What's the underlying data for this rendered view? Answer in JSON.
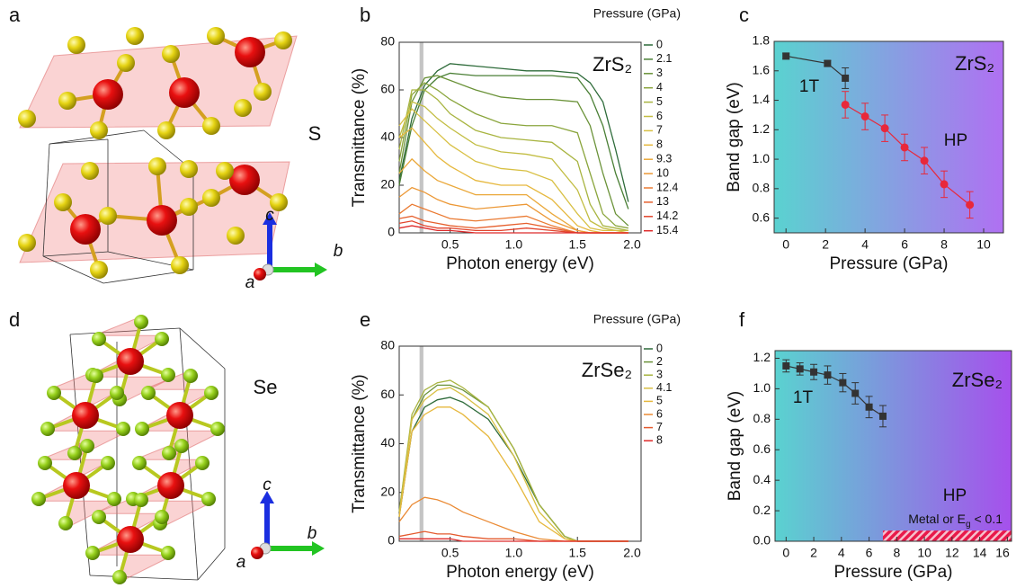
{
  "chart_data": [
    {
      "type": "line",
      "panel": "b",
      "title": "ZrS₂",
      "legend_title": "Pressure (GPa)",
      "xlabel": "Photon energy (eV)",
      "ylabel": "Transmittance (%)",
      "xlim": [
        0.1,
        2.0
      ],
      "ylim": [
        0,
        80
      ],
      "xticks": [
        0.5,
        {
          "value": 1,
          "label": "1.0"
        },
        1.5,
        {
          "value": 2,
          "label": "2.0"
        }
      ],
      "yticks": [
        0,
        20,
        40,
        60,
        80
      ],
      "highlight_xrange": [
        0.26,
        0.29
      ],
      "highlight_color": "#c4c4c4",
      "x": [
        0.1,
        0.2,
        0.3,
        0.4,
        0.5,
        0.7,
        0.9,
        1.1,
        1.3,
        1.5,
        1.6,
        1.7,
        1.8,
        1.9
      ],
      "series": [
        {
          "name": "0",
          "color": "#2e6b3a",
          "values": [
            22,
            48,
            62,
            68,
            71,
            70,
            69,
            68,
            68,
            67,
            63,
            55,
            35,
            13
          ]
        },
        {
          "name": "2.1",
          "color": "#4a7f35",
          "values": [
            20,
            45,
            60,
            65,
            67,
            66,
            66,
            66,
            66,
            65,
            58,
            45,
            25,
            10
          ]
        },
        {
          "name": "3",
          "color": "#6a9238",
          "values": [
            25,
            55,
            65,
            66,
            64,
            60,
            57,
            56,
            56,
            55,
            45,
            25,
            8,
            3
          ]
        },
        {
          "name": "4",
          "color": "#8aa53c",
          "values": [
            30,
            58,
            63,
            60,
            56,
            50,
            46,
            45,
            45,
            42,
            25,
            8,
            3,
            2
          ]
        },
        {
          "name": "5",
          "color": "#a8b440",
          "values": [
            35,
            60,
            60,
            56,
            50,
            43,
            40,
            39,
            38,
            30,
            12,
            3,
            2,
            1
          ]
        },
        {
          "name": "6",
          "color": "#c2bd42",
          "values": [
            40,
            55,
            53,
            48,
            44,
            37,
            34,
            33,
            31,
            18,
            5,
            2,
            1,
            1
          ]
        },
        {
          "name": "7",
          "color": "#d8c044",
          "values": [
            45,
            52,
            47,
            42,
            37,
            30,
            27,
            26,
            22,
            8,
            2,
            1,
            1,
            0
          ]
        },
        {
          "name": "8",
          "color": "#e6b83e",
          "values": [
            40,
            44,
            38,
            32,
            28,
            22,
            20,
            20,
            14,
            3,
            1,
            0,
            0,
            0
          ]
        },
        {
          "name": "9.3",
          "color": "#eaa83a",
          "values": [
            25,
            31,
            26,
            22,
            20,
            16,
            16,
            16,
            8,
            1,
            0,
            0,
            0,
            0
          ]
        },
        {
          "name": "10",
          "color": "#ec9836",
          "values": [
            15,
            19,
            17,
            14,
            12,
            10,
            11,
            12,
            5,
            1,
            0,
            0,
            0,
            0
          ]
        },
        {
          "name": "12.4",
          "color": "#ea7a32",
          "values": [
            8,
            12,
            10,
            8,
            6,
            5,
            6,
            7,
            3,
            0,
            0,
            0,
            0,
            0
          ]
        },
        {
          "name": "13",
          "color": "#e6602e",
          "values": [
            6,
            7,
            5,
            4,
            3,
            2,
            3,
            4,
            2,
            0,
            0,
            0,
            0,
            0
          ]
        },
        {
          "name": "14.2",
          "color": "#e2442c",
          "values": [
            4,
            5,
            3,
            2,
            2,
            1,
            1,
            2,
            1,
            0,
            0,
            0,
            0,
            0
          ]
        },
        {
          "name": "15.4",
          "color": "#de2a2a",
          "values": [
            2,
            3,
            2,
            1,
            1,
            0,
            0,
            0,
            0,
            0,
            0,
            0,
            0,
            0
          ]
        }
      ]
    },
    {
      "type": "errorbar",
      "panel": "c",
      "title": "ZrS₂",
      "xlabel": "Pressure (GPa)",
      "ylabel": "Band gap (eV)",
      "xlim": [
        -0.6,
        11
      ],
      "ylim": [
        0.5,
        1.8
      ],
      "xticks": [
        0,
        2,
        4,
        6,
        8,
        10
      ],
      "yticks": [
        0.6,
        0.8,
        {
          "value": 1,
          "label": "1.0"
        },
        1.2,
        1.4,
        1.6,
        1.8
      ],
      "background": [
        "#5ad2d0",
        "#b070f2"
      ],
      "series": [
        {
          "name": "1T",
          "color": "#333333",
          "marker": "square",
          "x": [
            0,
            2.1,
            3
          ],
          "values": [
            1.7,
            1.65,
            1.55
          ],
          "errors": [
            0.02,
            0.02,
            0.07
          ]
        },
        {
          "name": "HP",
          "color": "#e8283a",
          "marker": "circle",
          "x": [
            3,
            4,
            5,
            6,
            7,
            8,
            9.3
          ],
          "values": [
            1.37,
            1.29,
            1.21,
            1.08,
            0.99,
            0.83,
            0.69
          ],
          "errors": [
            0.09,
            0.09,
            0.09,
            0.09,
            0.09,
            0.09,
            0.09
          ]
        }
      ]
    },
    {
      "type": "line",
      "panel": "e",
      "title": "ZrSe₂",
      "legend_title": "Pressure (GPa)",
      "xlabel": "Photon energy (eV)",
      "ylabel": "Transmittance (%)",
      "xlim": [
        0.1,
        2.0
      ],
      "ylim": [
        0,
        80
      ],
      "xticks": [
        0.5,
        {
          "value": 1,
          "label": "1.0"
        },
        1.5,
        {
          "value": 2,
          "label": "2.0"
        }
      ],
      "yticks": [
        0,
        20,
        40,
        60,
        80
      ],
      "highlight_xrange": [
        0.26,
        0.29
      ],
      "highlight_color": "#c4c4c4",
      "x": [
        0.1,
        0.2,
        0.3,
        0.4,
        0.5,
        0.6,
        0.8,
        1.0,
        1.2,
        1.4,
        1.5,
        1.7,
        1.9
      ],
      "series": [
        {
          "name": "0",
          "color": "#2e6b3a",
          "values": [
            10,
            45,
            55,
            58,
            59,
            57,
            50,
            35,
            15,
            2,
            0,
            0,
            0
          ]
        },
        {
          "name": "2",
          "color": "#6a9238",
          "values": [
            12,
            50,
            60,
            64,
            64,
            62,
            55,
            38,
            15,
            2,
            0,
            0,
            0
          ]
        },
        {
          "name": "3",
          "color": "#a8b440",
          "values": [
            12,
            52,
            62,
            65,
            66,
            63,
            55,
            38,
            15,
            2,
            0,
            0,
            0
          ]
        },
        {
          "name": "4.1",
          "color": "#d8c044",
          "values": [
            10,
            50,
            58,
            62,
            63,
            60,
            52,
            35,
            12,
            1,
            0,
            0,
            0
          ]
        },
        {
          "name": "5",
          "color": "#e6b83e",
          "values": [
            10,
            45,
            52,
            55,
            55,
            52,
            43,
            27,
            8,
            1,
            0,
            0,
            0
          ]
        },
        {
          "name": "6",
          "color": "#ea8a34",
          "values": [
            8,
            15,
            18,
            17,
            15,
            12,
            8,
            4,
            1,
            0,
            0,
            0,
            0
          ]
        },
        {
          "name": "7",
          "color": "#e45a2e",
          "values": [
            2,
            3,
            4,
            3,
            3,
            2,
            1,
            1,
            0,
            0,
            0,
            0,
            0
          ]
        },
        {
          "name": "8",
          "color": "#de2a2a",
          "values": [
            1,
            1,
            1,
            1,
            1,
            0,
            0,
            0,
            0,
            0,
            0,
            0,
            0
          ]
        }
      ]
    },
    {
      "type": "errorbar",
      "panel": "f",
      "title": "ZrSe₂",
      "xlabel": "Pressure (GPa)",
      "ylabel": "Band gap (eV)",
      "xlim": [
        -0.8,
        16.3
      ],
      "ylim": [
        0,
        1.25
      ],
      "xticks": [
        0,
        2,
        4,
        6,
        8,
        10,
        12,
        14,
        16
      ],
      "yticks": [
        {
          "value": 0,
          "label": "0.0"
        },
        0.2,
        0.4,
        0.6,
        0.8,
        {
          "value": 1,
          "label": "1.0"
        },
        1.2
      ],
      "background": [
        "#5ad2d0",
        "#a650ec"
      ],
      "hatch_xrange": [
        7,
        16.3
      ],
      "hatch_ylim": [
        0,
        0.07
      ],
      "hatch_color": "#e8194a",
      "annotations": [
        "HP"
      ],
      "hatch_label": [
        "Metal or E",
        "g",
        " < 0.1"
      ],
      "series": [
        {
          "name": "1T",
          "color": "#333333",
          "marker": "square",
          "x": [
            0,
            1,
            2,
            3,
            4.1,
            5,
            6,
            7
          ],
          "values": [
            1.15,
            1.13,
            1.11,
            1.09,
            1.04,
            0.97,
            0.88,
            0.82
          ],
          "errors": [
            0.04,
            0.04,
            0.05,
            0.06,
            0.06,
            0.07,
            0.07,
            0.07
          ]
        }
      ]
    }
  ],
  "structures": [
    {
      "panel": "a",
      "atom_label": "S",
      "axes": [
        "a",
        "b",
        "c"
      ]
    },
    {
      "panel": "d",
      "atom_label": "Se",
      "axes": [
        "a",
        "b",
        "c"
      ]
    }
  ]
}
